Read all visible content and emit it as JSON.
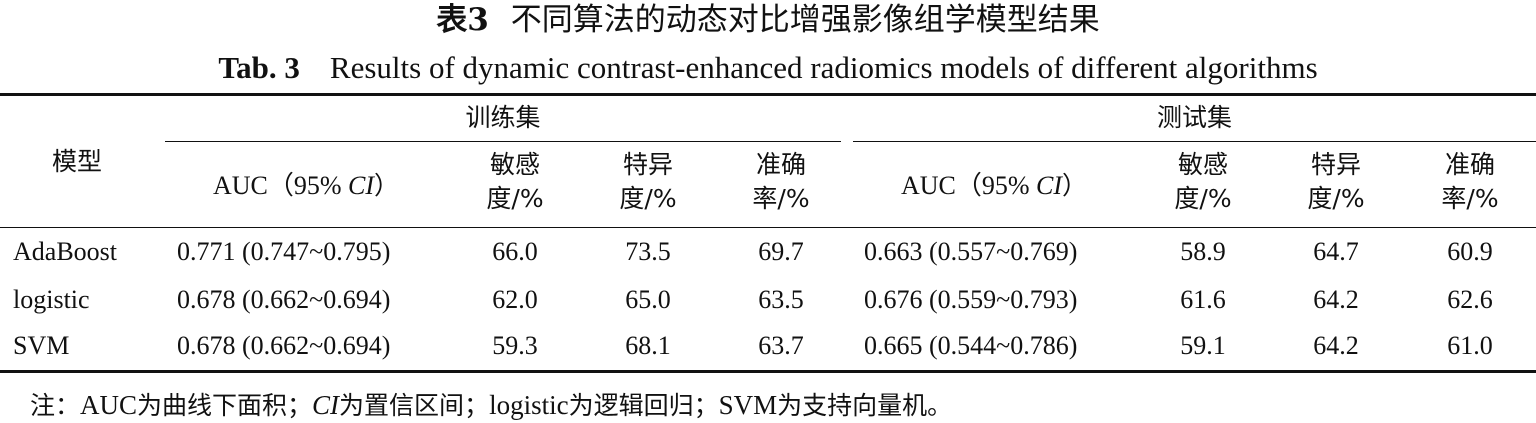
{
  "table": {
    "cn_title_prefix": "表3",
    "cn_title": "不同算法的动态对比增强影像组学模型结果",
    "en_title_prefix": "Tab. 3",
    "en_title": "Results of dynamic contrast-enhanced radiomics models of different algorithms",
    "header": {
      "model": "模型",
      "train_group": "训练集",
      "test_group": "测试集",
      "auc_prefix": "AUC（95%",
      "auc_ci": "CI",
      "auc_suffix": "）",
      "sensitivity_l1": "敏感",
      "sensitivity_l2": "度/%",
      "specificity_l1": "特异",
      "specificity_l2": "度/%",
      "accuracy_l1": "准确",
      "accuracy_l2": "率/%"
    },
    "rows": [
      {
        "model": "AdaBoost",
        "train_auc": "0.771 (0.747~0.795)",
        "train_sens": "66.0",
        "train_spec": "73.5",
        "train_acc": "69.7",
        "test_auc": "0.663 (0.557~0.769)",
        "test_sens": "58.9",
        "test_spec": "64.7",
        "test_acc": "60.9"
      },
      {
        "model": "logistic",
        "train_auc": "0.678 (0.662~0.694)",
        "train_sens": "62.0",
        "train_spec": "65.0",
        "train_acc": "63.5",
        "test_auc": "0.676 (0.559~0.793)",
        "test_sens": "61.6",
        "test_spec": "64.2",
        "test_acc": "62.6"
      },
      {
        "model": "SVM",
        "train_auc": "0.678 (0.662~0.694)",
        "train_sens": "59.3",
        "train_spec": "68.1",
        "train_acc": "63.7",
        "test_auc": "0.665 (0.544~0.786)",
        "test_sens": "59.1",
        "test_spec": "64.2",
        "test_acc": "61.0"
      }
    ],
    "note": {
      "lead": "注：",
      "auc": "AUC",
      "auc_def": "为曲线下面积；",
      "ci": "CI",
      "ci_def": "为置信区间；",
      "logistic": "logistic",
      "logistic_def": "为逻辑回归；",
      "svm": "SVM",
      "svm_def": "为支持向量机。"
    }
  }
}
